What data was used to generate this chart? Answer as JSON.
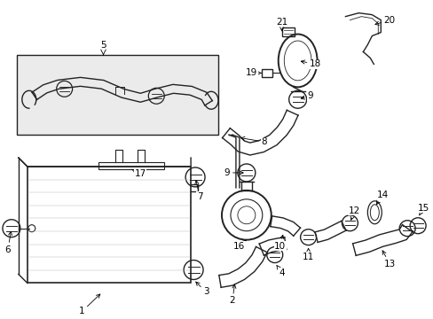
{
  "bg_color": "#ffffff",
  "line_color": "#222222",
  "fill_light": "#e8e8e8",
  "figsize": [
    4.89,
    3.6
  ],
  "dpi": 100
}
